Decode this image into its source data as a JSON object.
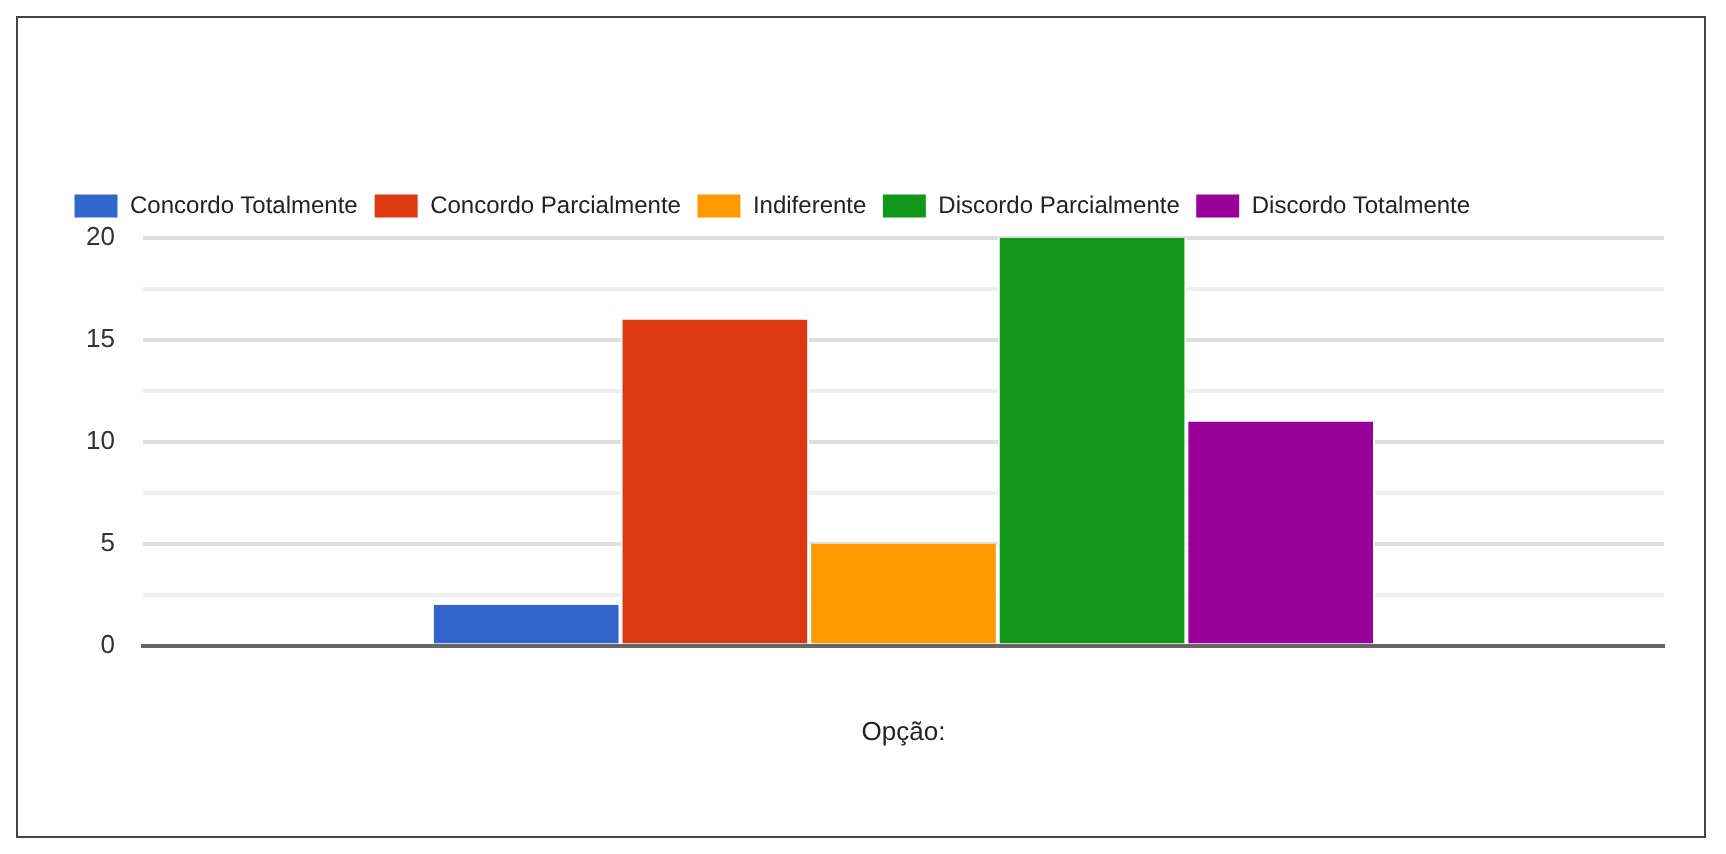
{
  "chart_data": {
    "type": "bar",
    "categories": [
      null
    ],
    "xlabel": "Opção:",
    "series": [
      {
        "name": "Concordo Totalmente",
        "color": "#3366cc",
        "values": [
          2
        ]
      },
      {
        "name": "Concordo Parcialmente",
        "color": "#dc3912",
        "values": [
          16
        ]
      },
      {
        "name": "Indiferente",
        "color": "#ff9900",
        "values": [
          5
        ]
      },
      {
        "name": "Discordo Parcialmente",
        "color": "#109618",
        "values": [
          20
        ]
      },
      {
        "name": "Discordo Totalmente",
        "color": "#990099",
        "values": [
          11
        ]
      }
    ],
    "ylim": [
      0,
      20
    ],
    "yticks": [
      0,
      {
        "value": 2.5,
        "label": null
      },
      5,
      {
        "value": 7.5,
        "label": null
      },
      10,
      {
        "value": 12.5,
        "label": null
      },
      15,
      {
        "value": 17.5,
        "label": null
      },
      20
    ],
    "grid": "y",
    "legend": "top left"
  }
}
